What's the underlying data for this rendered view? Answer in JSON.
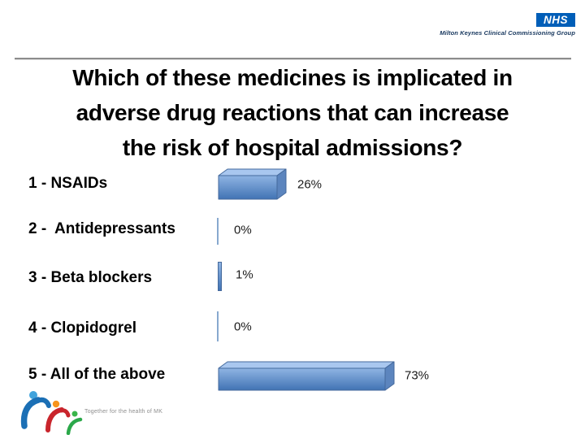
{
  "header": {
    "nhs_logo": "NHS",
    "organisation": "Milton Keynes Clinical Commissioning Group"
  },
  "title": {
    "line1": "Which of these medicines is implicated in",
    "line2": "adverse drug reactions that can increase",
    "line3": "the risk of hospital admissions?"
  },
  "options": [
    {
      "label": "1 - NSAIDs",
      "percent_label": "26%",
      "value": 26
    },
    {
      "label": "2 -  Antidepressants",
      "percent_label": "0%",
      "value": 0
    },
    {
      "label": "3 - Beta blockers",
      "percent_label": "1%",
      "value": 1
    },
    {
      "label": "4 - Clopidogrel",
      "percent_label": "0%",
      "value": 0
    },
    {
      "label": "5 - All of the above",
      "percent_label": "73%",
      "value": 73
    }
  ],
  "footer": {
    "tagline": "Together for the health of MK"
  },
  "colors": {
    "nhs_blue": "#005EB8",
    "bar_front_top": "#8FB4E3",
    "bar_front_bottom": "#4173B4",
    "bar_top_face": "#A9C7EF",
    "bar_side_face": "#5C85BE",
    "bar_outline": "#44699C",
    "zero_line": "#88A9CF",
    "rule_gray": "#8C8C8C"
  },
  "chart_data": {
    "type": "bar",
    "orientation": "horizontal",
    "title": "Which of these medicines is implicated in adverse drug reactions that can increase the risk of hospital admissions?",
    "categories": [
      "1 - NSAIDs",
      "2 -  Antidepressants",
      "3 - Beta blockers",
      "4 - Clopidogrel",
      "5 - All of the above"
    ],
    "values": [
      26,
      0,
      1,
      0,
      73
    ],
    "value_labels": [
      "26%",
      "0%",
      "1%",
      "0%",
      "73%"
    ],
    "xlim": [
      0,
      100
    ],
    "grid": false,
    "legend": false,
    "bar_color": "#4F81BD",
    "style": "3d-cuboid-bars"
  }
}
